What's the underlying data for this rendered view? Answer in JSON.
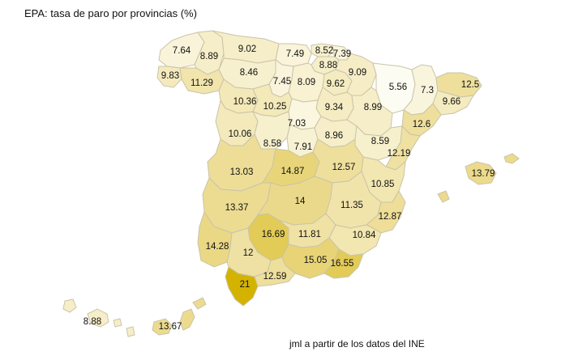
{
  "title": "EPA: tasa de paro por provincias (%)",
  "credit": "jml a partir de los datos del INE",
  "color_scale": {
    "low": "#fdfcf2",
    "mid": "#ebd98a",
    "high": "#d4b300",
    "min": 5.56,
    "max": 21
  },
  "provinces": [
    {
      "id": "a-coruna",
      "value": "7.64"
    },
    {
      "id": "lugo",
      "value": "8.89"
    },
    {
      "id": "asturias",
      "value": "9.02"
    },
    {
      "id": "cantabria",
      "value": "7.49"
    },
    {
      "id": "bizkaia",
      "value": "8.52"
    },
    {
      "id": "gipuzkoa",
      "value": "7.39"
    },
    {
      "id": "araba",
      "value": "8.88"
    },
    {
      "id": "pontevedra",
      "value": "9.83"
    },
    {
      "id": "ourense",
      "value": "11.29"
    },
    {
      "id": "leon",
      "value": "8.46"
    },
    {
      "id": "palencia",
      "value": "7.45"
    },
    {
      "id": "burgos",
      "value": "8.09"
    },
    {
      "id": "la-rioja",
      "value": "9.62"
    },
    {
      "id": "navarra",
      "value": "9.09"
    },
    {
      "id": "huesca",
      "value": "5.56"
    },
    {
      "id": "lleida",
      "value": "7.3"
    },
    {
      "id": "girona",
      "value": "12.5"
    },
    {
      "id": "barcelona",
      "value": "9.66"
    },
    {
      "id": "zamora",
      "value": "10.36"
    },
    {
      "id": "valladolid",
      "value": "10.25"
    },
    {
      "id": "soria",
      "value": "9.34"
    },
    {
      "id": "zaragoza",
      "value": "8.99"
    },
    {
      "id": "tarragona",
      "value": "12.6"
    },
    {
      "id": "salamanca",
      "value": "10.06"
    },
    {
      "id": "segovia",
      "value": "7.03"
    },
    {
      "id": "avila",
      "value": "8.58"
    },
    {
      "id": "madrid",
      "value": "7.91"
    },
    {
      "id": "guadalajara",
      "value": "8.96"
    },
    {
      "id": "teruel",
      "value": "8.59"
    },
    {
      "id": "castellon",
      "value": "12.19"
    },
    {
      "id": "caceres",
      "value": "13.03"
    },
    {
      "id": "toledo",
      "value": "14.87"
    },
    {
      "id": "cuenca",
      "value": "12.57"
    },
    {
      "id": "illes-balears",
      "value": "13.79"
    },
    {
      "id": "valencia",
      "value": "10.85"
    },
    {
      "id": "badajoz",
      "value": "13.37"
    },
    {
      "id": "ciudad-real",
      "value": "14"
    },
    {
      "id": "albacete",
      "value": "11.35"
    },
    {
      "id": "alicante",
      "value": "12.87"
    },
    {
      "id": "cordoba",
      "value": "16.69"
    },
    {
      "id": "jaen",
      "value": "11.81"
    },
    {
      "id": "murcia",
      "value": "10.84"
    },
    {
      "id": "huelva",
      "value": "14.28"
    },
    {
      "id": "sevilla",
      "value": "12"
    },
    {
      "id": "granada",
      "value": "15.05"
    },
    {
      "id": "almeria",
      "value": "16.55"
    },
    {
      "id": "cadiz",
      "value": "21"
    },
    {
      "id": "malaga",
      "value": "12.59"
    },
    {
      "id": "santa-cruz-de-tenerife",
      "value": "8.88"
    },
    {
      "id": "las-palmas",
      "value": "13.67"
    }
  ]
}
